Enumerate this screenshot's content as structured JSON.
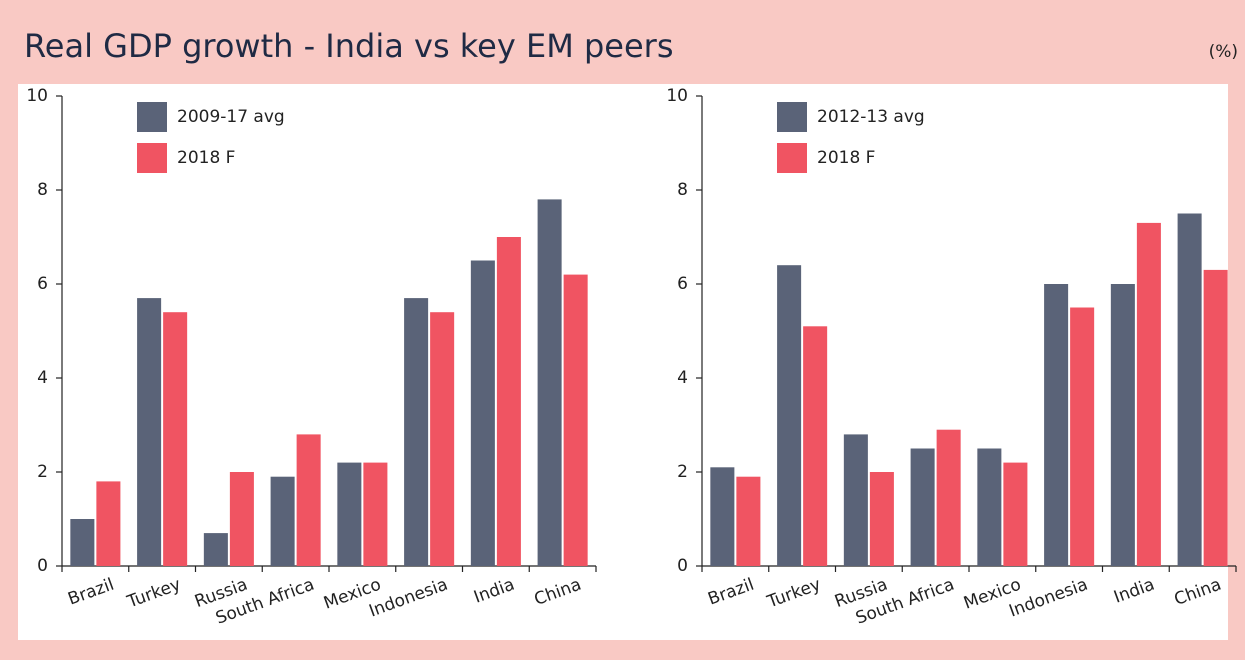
{
  "title": "Real GDP growth - India vs key EM peers",
  "unit": "(%)",
  "chart_data": [
    {
      "type": "bar",
      "categories": [
        "Brazil",
        "Turkey",
        "Russia",
        "South Africa",
        "Mexico",
        "Indonesia",
        "India",
        "China"
      ],
      "series": [
        {
          "name": "2009-17 avg",
          "color": "#5a6378",
          "values": [
            1.0,
            5.7,
            0.7,
            1.9,
            2.2,
            5.7,
            6.5,
            7.8
          ]
        },
        {
          "name": "2018 F",
          "color": "#f05462",
          "values": [
            1.8,
            5.4,
            2.0,
            2.8,
            2.2,
            5.4,
            7.0,
            6.2
          ]
        }
      ],
      "ylim": [
        0,
        10
      ],
      "yticks": [
        0,
        2,
        4,
        6,
        8,
        10
      ],
      "legend": "upper left"
    },
    {
      "type": "bar",
      "categories": [
        "Brazil",
        "Turkey",
        "Russia",
        "South Africa",
        "Mexico",
        "Indonesia",
        "India",
        "China"
      ],
      "series": [
        {
          "name": "2012-13 avg",
          "color": "#5a6378",
          "values": [
            2.1,
            6.4,
            2.8,
            2.5,
            2.5,
            6.0,
            6.0,
            7.5
          ]
        },
        {
          "name": "2018 F",
          "color": "#f05462",
          "values": [
            1.9,
            5.1,
            2.0,
            2.9,
            2.2,
            5.5,
            7.3,
            6.3
          ]
        }
      ],
      "ylim": [
        0,
        10
      ],
      "yticks": [
        0,
        2,
        4,
        6,
        8,
        10
      ],
      "legend": "upper left"
    }
  ]
}
